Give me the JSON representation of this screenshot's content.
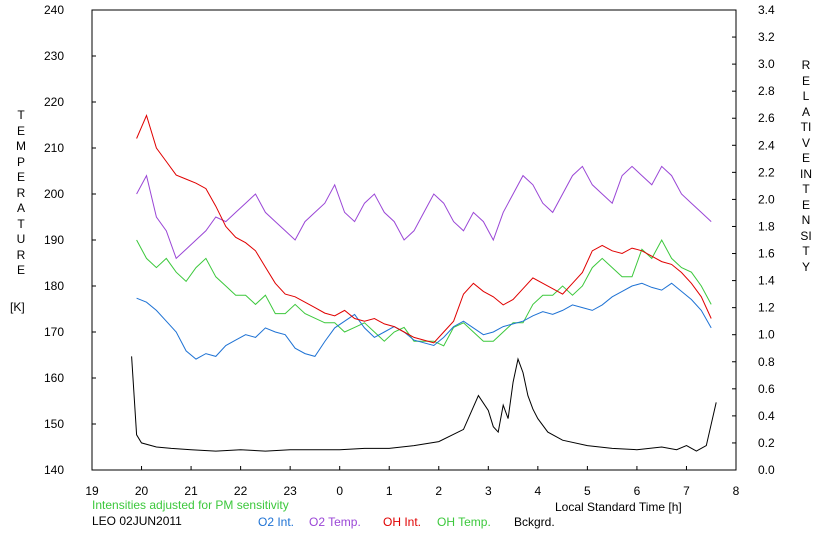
{
  "chart_data": {
    "type": "line",
    "title": "",
    "xlabel": "Local Standard Time [h]",
    "ylabel_left": "TEMPERATURE",
    "ylabel_left_unit": "[K]",
    "ylabel_right": "RELATIVE INTENSITY",
    "x_ticks": [
      "19",
      "20",
      "21",
      "22",
      "23",
      "0",
      "1",
      "2",
      "3",
      "4",
      "5",
      "6",
      "7",
      "8"
    ],
    "x_range_hours_since_19": [
      0,
      13
    ],
    "y_left_ticks": [
      140,
      150,
      160,
      170,
      180,
      190,
      200,
      210,
      220,
      230,
      240
    ],
    "ylim_left": [
      140,
      240
    ],
    "y_right_ticks": [
      "0.0",
      "0.2",
      "0.4",
      "0.6",
      "0.8",
      "1.0",
      "1.2",
      "1.4",
      "1.6",
      "1.8",
      "2.0",
      "2.2",
      "2.4",
      "2.6",
      "2.8",
      "3.0",
      "3.2",
      "3.4"
    ],
    "ylim_right": [
      0.0,
      3.4
    ],
    "grid": false,
    "note": "Intensities adjusted for PM sensitivity",
    "station": "LEO 02JUN2011",
    "series": [
      {
        "name": "O2 Int.",
        "color": "#1e72d4",
        "axis": "right",
        "x": [
          19.9,
          20.1,
          20.3,
          20.5,
          20.7,
          20.9,
          21.1,
          21.3,
          21.5,
          21.7,
          21.9,
          22.1,
          22.3,
          22.5,
          22.7,
          22.9,
          23.1,
          23.3,
          23.5,
          23.7,
          23.9,
          24.1,
          24.3,
          24.5,
          24.7,
          24.9,
          25.1,
          25.3,
          25.5,
          25.7,
          25.9,
          26.1,
          26.3,
          26.5,
          26.7,
          26.9,
          27.1,
          27.3,
          27.5,
          27.7,
          27.9,
          28.1,
          28.3,
          28.5,
          28.7,
          28.9,
          29.1,
          29.3,
          29.5,
          29.7,
          29.9,
          30.1,
          30.3,
          30.5,
          30.7,
          30.9,
          31.1,
          31.3,
          31.5
        ],
        "values": [
          1.27,
          1.24,
          1.18,
          1.1,
          1.02,
          0.88,
          0.82,
          0.86,
          0.84,
          0.92,
          0.96,
          1.0,
          0.98,
          1.05,
          1.02,
          1.0,
          0.9,
          0.86,
          0.84,
          0.95,
          1.05,
          1.1,
          1.15,
          1.05,
          0.98,
          1.02,
          1.06,
          1.02,
          0.96,
          0.94,
          0.92,
          0.98,
          1.06,
          1.1,
          1.05,
          1.0,
          1.02,
          1.06,
          1.08,
          1.1,
          1.14,
          1.17,
          1.15,
          1.18,
          1.22,
          1.2,
          1.18,
          1.22,
          1.28,
          1.32,
          1.36,
          1.38,
          1.35,
          1.33,
          1.38,
          1.32,
          1.26,
          1.18,
          1.05
        ]
      },
      {
        "name": "O2 Temp.",
        "color": "#9a46d6",
        "axis": "left",
        "x": [
          19.9,
          20.1,
          20.3,
          20.5,
          20.7,
          20.9,
          21.1,
          21.3,
          21.5,
          21.7,
          21.9,
          22.1,
          22.3,
          22.5,
          22.7,
          22.9,
          23.1,
          23.3,
          23.5,
          23.7,
          23.9,
          24.1,
          24.3,
          24.5,
          24.7,
          24.9,
          25.1,
          25.3,
          25.5,
          25.7,
          25.9,
          26.1,
          26.3,
          26.5,
          26.7,
          26.9,
          27.1,
          27.3,
          27.5,
          27.7,
          27.9,
          28.1,
          28.3,
          28.5,
          28.7,
          28.9,
          29.1,
          29.3,
          29.5,
          29.7,
          29.9,
          30.1,
          30.3,
          30.5,
          30.7,
          30.9,
          31.1,
          31.3,
          31.5
        ],
        "values": [
          200,
          204,
          195,
          192,
          186,
          188,
          190,
          192,
          195,
          194,
          196,
          198,
          200,
          196,
          194,
          192,
          190,
          194,
          196,
          198,
          202,
          196,
          194,
          198,
          200,
          196,
          194,
          190,
          192,
          196,
          200,
          198,
          194,
          192,
          196,
          194,
          190,
          196,
          200,
          204,
          202,
          198,
          196,
          200,
          204,
          206,
          202,
          200,
          198,
          204,
          206,
          204,
          202,
          206,
          204,
          200,
          198,
          196,
          194
        ]
      },
      {
        "name": "OH Int.",
        "color": "#e00000",
        "axis": "right",
        "x": [
          19.9,
          20.1,
          20.3,
          20.5,
          20.7,
          20.9,
          21.1,
          21.3,
          21.5,
          21.7,
          21.9,
          22.1,
          22.3,
          22.5,
          22.7,
          22.9,
          23.1,
          23.3,
          23.5,
          23.7,
          23.9,
          24.1,
          24.3,
          24.5,
          24.7,
          24.9,
          25.1,
          25.3,
          25.5,
          25.7,
          25.9,
          26.1,
          26.3,
          26.5,
          26.7,
          26.9,
          27.1,
          27.3,
          27.5,
          27.7,
          27.9,
          28.1,
          28.3,
          28.5,
          28.7,
          28.9,
          29.1,
          29.3,
          29.5,
          29.7,
          29.9,
          30.1,
          30.3,
          30.5,
          30.7,
          30.9,
          31.1,
          31.3,
          31.5
        ],
        "values": [
          2.45,
          2.62,
          2.38,
          2.28,
          2.18,
          2.15,
          2.12,
          2.08,
          1.95,
          1.8,
          1.72,
          1.68,
          1.62,
          1.5,
          1.38,
          1.3,
          1.28,
          1.24,
          1.2,
          1.16,
          1.14,
          1.18,
          1.12,
          1.1,
          1.12,
          1.08,
          1.06,
          1.02,
          0.98,
          0.96,
          0.94,
          1.02,
          1.1,
          1.3,
          1.38,
          1.32,
          1.28,
          1.22,
          1.26,
          1.34,
          1.42,
          1.38,
          1.34,
          1.3,
          1.38,
          1.46,
          1.62,
          1.66,
          1.62,
          1.6,
          1.64,
          1.62,
          1.58,
          1.54,
          1.52,
          1.46,
          1.38,
          1.28,
          1.12
        ]
      },
      {
        "name": "OH Temp.",
        "color": "#3cc83c",
        "axis": "left",
        "x": [
          19.9,
          20.1,
          20.3,
          20.5,
          20.7,
          20.9,
          21.1,
          21.3,
          21.5,
          21.7,
          21.9,
          22.1,
          22.3,
          22.5,
          22.7,
          22.9,
          23.1,
          23.3,
          23.5,
          23.7,
          23.9,
          24.1,
          24.3,
          24.5,
          24.7,
          24.9,
          25.1,
          25.3,
          25.5,
          25.7,
          25.9,
          26.1,
          26.3,
          26.5,
          26.7,
          26.9,
          27.1,
          27.3,
          27.5,
          27.7,
          27.9,
          28.1,
          28.3,
          28.5,
          28.7,
          28.9,
          29.1,
          29.3,
          29.5,
          29.7,
          29.9,
          30.1,
          30.3,
          30.5,
          30.7,
          30.9,
          31.1,
          31.3,
          31.5
        ],
        "values": [
          190,
          186,
          184,
          186,
          183,
          181,
          184,
          186,
          182,
          180,
          178,
          178,
          176,
          178,
          174,
          174,
          176,
          174,
          173,
          172,
          172,
          170,
          171,
          172,
          170,
          168,
          170,
          171,
          168,
          168,
          168,
          167,
          171,
          172,
          170,
          168,
          168,
          170,
          172,
          172,
          176,
          178,
          178,
          180,
          178,
          180,
          184,
          186,
          184,
          182,
          182,
          188,
          186,
          190,
          186,
          184,
          183,
          180,
          176
        ]
      },
      {
        "name": "Bckgrd.",
        "color": "#000000",
        "axis": "right",
        "x": [
          19.8,
          19.9,
          20.0,
          20.3,
          20.6,
          21.0,
          21.5,
          22.0,
          22.5,
          23.0,
          23.5,
          24.0,
          24.5,
          25.0,
          25.5,
          26.0,
          26.5,
          26.8,
          27.0,
          27.1,
          27.2,
          27.3,
          27.4,
          27.5,
          27.6,
          27.7,
          27.8,
          27.9,
          28.0,
          28.2,
          28.5,
          29.0,
          29.5,
          30.0,
          30.5,
          30.8,
          31.0,
          31.2,
          31.4,
          31.6
        ],
        "values": [
          0.84,
          0.26,
          0.2,
          0.17,
          0.16,
          0.15,
          0.14,
          0.15,
          0.14,
          0.15,
          0.15,
          0.15,
          0.16,
          0.16,
          0.18,
          0.21,
          0.3,
          0.55,
          0.44,
          0.32,
          0.28,
          0.48,
          0.38,
          0.65,
          0.82,
          0.72,
          0.55,
          0.45,
          0.38,
          0.28,
          0.22,
          0.18,
          0.16,
          0.15,
          0.17,
          0.15,
          0.18,
          0.14,
          0.18,
          0.5
        ]
      }
    ]
  }
}
